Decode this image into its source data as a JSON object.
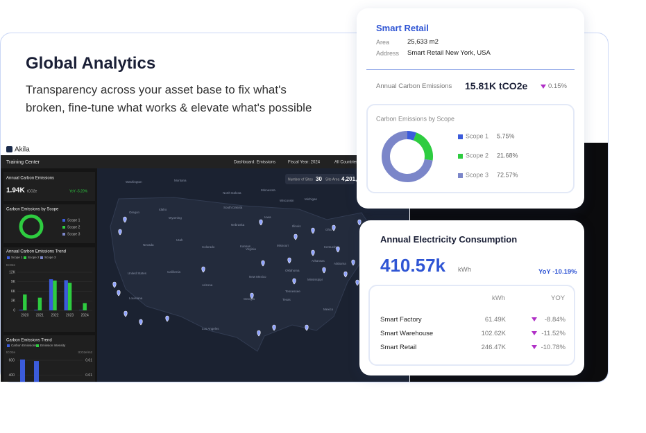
{
  "hero": {
    "title": "Global Analytics",
    "subtitle_lines": [
      "Transparency across your asset base to fix what's",
      "broken, fine-tune what works & elevate what's possible"
    ]
  },
  "dashboard": {
    "brand": "Akila",
    "nav": "Training Center",
    "filters": [
      "Dashboard: Emissions",
      "Fiscal Year: 2024",
      "All Countries"
    ],
    "sites": {
      "label": "Number of Sites",
      "value": "30",
      "area_label": "Site Area",
      "area_value": "4,201,"
    },
    "annual_emissions": {
      "title": "Annual Carbon Emissions",
      "value": "1.94K",
      "unit": "tCO2e",
      "yoy": "YoY -5.20%"
    },
    "scope_card": {
      "title": "Carbon Emissions by Scope",
      "legend": [
        "Scope 1",
        "Scope 2",
        "Scope 3"
      ]
    },
    "trend_chart": {
      "type": "bar",
      "title": "Annual Carbon Emissions Trend",
      "y_label": "tCO2e",
      "categories": [
        "2020",
        "2021",
        "2022",
        "2023",
        "2024"
      ],
      "series": [
        {
          "name": "Scope 1",
          "color": "#3b5bdb",
          "values": [
            200,
            200,
            9800,
            9500,
            100
          ]
        },
        {
          "name": "Scope 2",
          "color": "#2ecc40",
          "values": [
            5000,
            4000,
            9400,
            8700,
            2300
          ]
        },
        {
          "name": "Scope 3",
          "color": "#7b86c9",
          "values": [
            0,
            0,
            0,
            0,
            0
          ]
        }
      ],
      "ylim": [
        0,
        12000
      ],
      "yticks": [
        0,
        {
          "value": 3000,
          "label": "3K"
        },
        {
          "value": 6000,
          "label": "6K"
        },
        {
          "value": 9000,
          "label": "9K"
        },
        {
          "value": 12000,
          "label": "12K"
        }
      ],
      "grid": true
    },
    "intensity_chart": {
      "type": "bar",
      "title": "Carbon Emissions Trend",
      "y_label": "tCO2e",
      "y2_label": "tCO2e/m2",
      "categories": [
        null,
        null
      ],
      "series": [
        {
          "name": "Carbon Emissions",
          "color": "#3b5bdb",
          "values": [
            610,
            590
          ]
        },
        {
          "name": "Emission Intensity",
          "color": "#2ecc40",
          "values": [
            null,
            null
          ]
        }
      ],
      "ylim": [
        0,
        600
      ],
      "yticks": [
        400,
        600
      ],
      "y2ticks": [
        0.01,
        0.01
      ]
    },
    "map_labels": [
      "Washington",
      "Montana",
      "North Dakota",
      "Minnesota",
      "Wisconsin",
      "Michigan",
      "Oregon",
      "Idaho",
      "South Dakota",
      "Wyoming",
      "Iowa",
      "Nebraska",
      "Illinois",
      "Ohio",
      "Nevada",
      "Utah",
      "Colorado",
      "Kansas",
      "Missouri",
      "Kentucky",
      "Virginia",
      "United States",
      "California",
      "Arizona",
      "New Mexico",
      "Oklahoma",
      "Arkansas",
      "Tennessee",
      "Mississippi",
      "Alabama",
      "Georgia",
      "Texas",
      "Louisiana",
      "Los Angeles",
      "Mexico"
    ]
  },
  "retail_card": {
    "title": "Smart Retail",
    "fields": [
      {
        "label": "Area",
        "value": "25,633 m2"
      },
      {
        "label": "Address",
        "value": "Smart Retail New York, USA"
      }
    ],
    "emissions_label": "Annual Carbon Emissions",
    "emissions_value": "15.81K tCO2e",
    "emissions_change": "0.15%",
    "scope_chart": {
      "type": "pie",
      "title": "Carbon Emissions by Scope",
      "categories": [
        "Scope 1",
        "Scope 2",
        "Scope 3"
      ],
      "values": [
        5.75,
        21.68,
        72.57
      ],
      "value_labels": [
        "5.75%",
        "21.68%",
        "72.57%"
      ],
      "colors": [
        "#3b5bdb",
        "#2ecc40",
        "#7b86c9"
      ]
    }
  },
  "electricity_card": {
    "title": "Annual Electricity Consumption",
    "value": "410.57k",
    "unit": "kWh",
    "yoy": "YoY -10.19%",
    "table": {
      "headers": [
        "kWh",
        "YOY"
      ],
      "rows": [
        [
          "Smart Factory",
          "61.49K",
          "-8.84%"
        ],
        [
          "Smart Warehouse",
          "102.62K",
          "-11.52%"
        ],
        [
          "Smart Retail",
          "246.47K",
          "-10.78%"
        ]
      ]
    }
  }
}
